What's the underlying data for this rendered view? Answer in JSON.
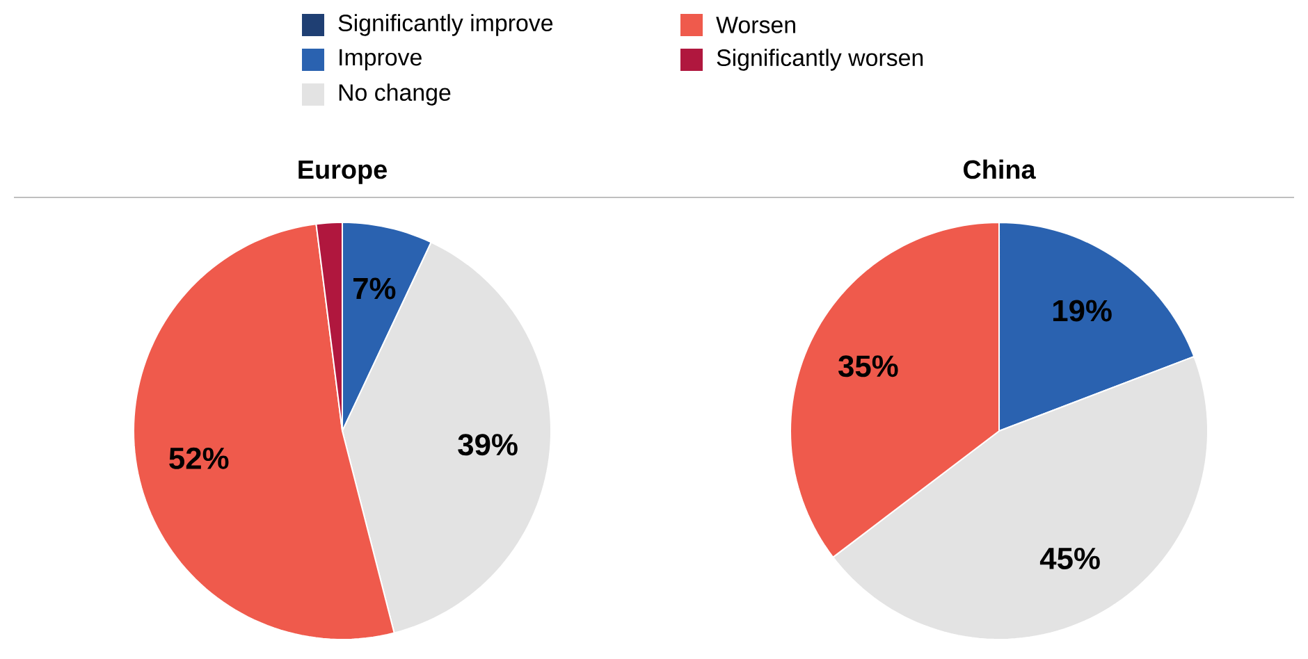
{
  "chart_data": [
    {
      "type": "pie",
      "title": "Europe",
      "categories": [
        "Significantly improve",
        "Improve",
        "No change",
        "Worsen",
        "Significantly worsen"
      ],
      "values": [
        0,
        7,
        39,
        52,
        2
      ],
      "value_labels": [
        null,
        "7%",
        "39%",
        "52%",
        null
      ],
      "colors": [
        "#1f3f73",
        "#2a62b0",
        "#e3e3e3",
        "#ef5a4c",
        "#b0173e"
      ],
      "legend": "top"
    },
    {
      "type": "pie",
      "title": "China",
      "values": [
        0,
        19,
        45,
        35,
        0
      ],
      "value_labels": [
        null,
        "19%",
        "45%",
        "35%",
        null
      ],
      "colors": [
        "#1f3f73",
        "#2a62b0",
        "#e3e3e3",
        "#ef5a4c",
        "#b0173e"
      ]
    }
  ]
}
